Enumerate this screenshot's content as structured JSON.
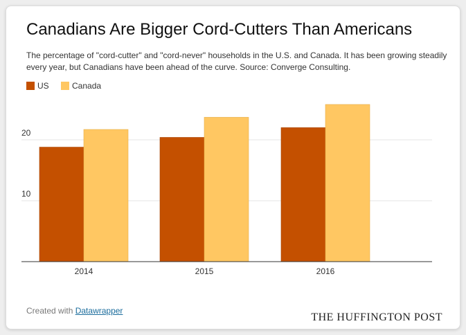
{
  "header": {
    "title": "Canadians Are Bigger Cord-Cutters Than Americans",
    "subtitle": "The percentage of \"cord-cutter\" and \"cord-never\" households in the U.S. and Canada. It has been growing steadily every year, but Canadians have been ahead of the curve. Source: Converge Consulting."
  },
  "footer": {
    "created_with": "Created with",
    "tool_link": "Datawrapper",
    "brand": "THE HUFFINGTON POST"
  },
  "colors": {
    "us": "#c45000",
    "canada": "#ffc762",
    "grid": "#e4e4e4",
    "axis": "#333333"
  },
  "chart_data": {
    "type": "bar",
    "title": "Canadians Are Bigger Cord-Cutters Than Americans",
    "categories": [
      "2014",
      "2015",
      "2016"
    ],
    "series": [
      {
        "name": "US",
        "values": [
          18.8,
          20.4,
          22.0
        ]
      },
      {
        "name": "Canada",
        "values": [
          21.7,
          23.7,
          25.8
        ]
      }
    ],
    "yticks": [
      10,
      20
    ],
    "ylim": [
      0,
      26
    ],
    "grid": true,
    "legend": "top-left",
    "xlabel": "",
    "ylabel": ""
  }
}
